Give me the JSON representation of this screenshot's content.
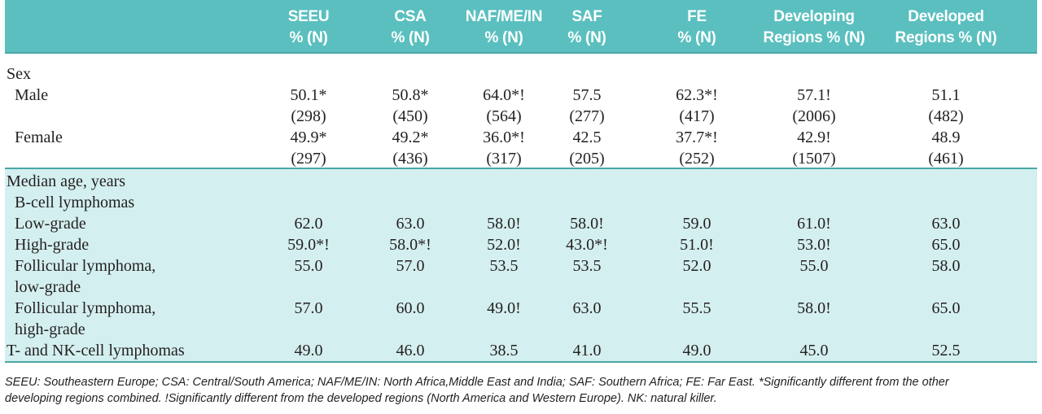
{
  "headers": [
    {
      "line1": "SEEU",
      "line2": "% (N)"
    },
    {
      "line1": "CSA",
      "line2": "% (N)"
    },
    {
      "line1": "NAF/ME/IN",
      "line2": "% (N)"
    },
    {
      "line1": "SAF",
      "line2": "% (N)"
    },
    {
      "line1": "FE",
      "line2": "% (N)"
    },
    {
      "line1": "Developing",
      "line2": "Regions % (N)"
    },
    {
      "line1": "Developed",
      "line2": "Regions % (N)"
    }
  ],
  "sex": {
    "title": "Sex",
    "male": {
      "label": "Male",
      "pct": [
        "50.1*",
        "50.8*",
        "64.0*!",
        "57.5",
        "62.3*!",
        "57.1!",
        "51.1"
      ],
      "n": [
        "(298)",
        "(450)",
        "(564)",
        "(277)",
        "(417)",
        "(2006)",
        "(482)"
      ]
    },
    "female": {
      "label": "Female",
      "pct": [
        "49.9*",
        "49.2*",
        "36.0*!",
        "42.5",
        "37.7*!",
        "42.9!",
        "48.9"
      ],
      "n": [
        "(297)",
        "(436)",
        "(317)",
        "(205)",
        "(252)",
        "(1507)",
        "(461)"
      ]
    }
  },
  "age": {
    "title": "Median age, years",
    "bcell": "B-cell lymphomas",
    "low": {
      "label": "Low-grade",
      "values": [
        "62.0",
        "63.0",
        "58.0!",
        "58.0!",
        "59.0",
        "61.0!",
        "63.0"
      ]
    },
    "high": {
      "label": "High-grade",
      "values": [
        "59.0*!",
        "58.0*!",
        "52.0!",
        "43.0*!",
        "51.0!",
        "53.0!",
        "65.0"
      ]
    },
    "fl_low": {
      "label1": "Follicular lymphoma,",
      "label2": "low-grade",
      "values": [
        "55.0",
        "57.0",
        "53.5",
        "53.5",
        "52.0",
        "55.0",
        "58.0"
      ]
    },
    "fl_high": {
      "label1": "Follicular lymphoma,",
      "label2": "high-grade",
      "values": [
        "57.0",
        "60.0",
        "49.0!",
        "63.0",
        "55.5",
        "58.0!",
        "65.0"
      ]
    },
    "tnk": {
      "label": "T- and NK-cell lymphomas",
      "values": [
        "49.0",
        "46.0",
        "38.5",
        "41.0",
        "49.0",
        "45.0",
        "52.5"
      ]
    }
  },
  "footnote": {
    "line1": "SEEU: Southeastern Europe; CSA: Central/South America; NAF/ME/IN: North Africa,Middle East and India; SAF: Southern Africa; FE: Far East. *Significantly different from the other",
    "line2": "developing regions combined. !Significantly different from the developed regions (North America and Western Europe). NK: natural killer."
  }
}
